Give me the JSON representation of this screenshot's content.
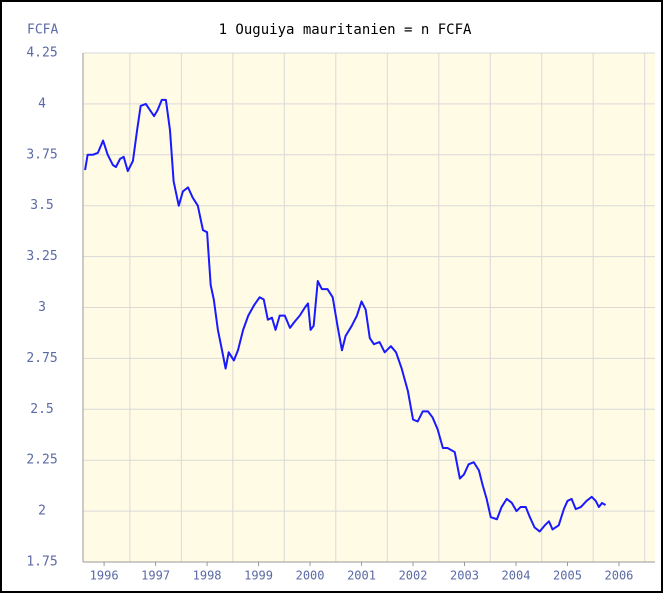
{
  "chart_data": {
    "type": "line",
    "title": "1 Ouguiya mauritanien = n FCFA",
    "y_label": "FCFA",
    "color": "#1a1aff",
    "x": [
      1996.13,
      1996.18,
      1996.28,
      1996.38,
      1996.48,
      1996.57,
      1996.67,
      1996.73,
      1996.81,
      1996.88,
      1996.96,
      1997.06,
      1997.14,
      1997.21,
      1997.31,
      1997.39,
      1997.47,
      1997.54,
      1997.62,
      1997.7,
      1997.78,
      1997.85,
      1997.95,
      1998.03,
      1998.13,
      1998.22,
      1998.32,
      1998.42,
      1998.5,
      1998.57,
      1998.63,
      1998.71,
      1998.79,
      1998.86,
      1998.92,
      1999.02,
      1999.1,
      1999.2,
      1999.3,
      1999.41,
      1999.52,
      1999.6,
      1999.68,
      1999.76,
      1999.83,
      1999.91,
      2000.01,
      2000.11,
      2000.2,
      2000.3,
      2000.4,
      2000.46,
      2000.51,
      2000.57,
      2000.65,
      2000.73,
      2000.84,
      2000.94,
      2001.04,
      2001.12,
      2001.19,
      2001.31,
      2001.41,
      2001.5,
      2001.58,
      2001.66,
      2001.74,
      2001.85,
      2001.95,
      2002.07,
      2002.17,
      2002.28,
      2002.4,
      2002.5,
      2002.59,
      2002.69,
      2002.79,
      2002.88,
      2002.98,
      2003.08,
      2003.17,
      2003.31,
      2003.41,
      2003.49,
      2003.58,
      2003.68,
      2003.78,
      2003.85,
      2003.93,
      2004.01,
      2004.13,
      2004.22,
      2004.32,
      2004.42,
      2004.51,
      2004.59,
      2004.69,
      2004.77,
      2004.86,
      2004.96,
      2005.06,
      2005.14,
      2005.21,
      2005.33,
      2005.43,
      2005.5,
      2005.58,
      2005.66,
      2005.76,
      2005.87,
      2005.97,
      2006.05,
      2006.11,
      2006.17,
      2006.24
    ],
    "values": [
      3.675,
      3.75,
      3.75,
      3.76,
      3.82,
      3.75,
      3.7,
      3.69,
      3.73,
      3.74,
      3.67,
      3.72,
      3.87,
      3.99,
      4.0,
      3.97,
      3.94,
      3.97,
      4.02,
      4.02,
      3.87,
      3.62,
      3.5,
      3.57,
      3.59,
      3.54,
      3.5,
      3.38,
      3.37,
      3.11,
      3.04,
      2.89,
      2.79,
      2.7,
      2.78,
      2.74,
      2.79,
      2.89,
      2.96,
      3.01,
      3.05,
      3.04,
      2.94,
      2.95,
      2.89,
      2.96,
      2.96,
      2.9,
      2.93,
      2.96,
      3.0,
      3.02,
      2.89,
      2.91,
      3.13,
      3.09,
      3.09,
      3.05,
      2.9,
      2.79,
      2.86,
      2.91,
      2.96,
      3.03,
      2.99,
      2.85,
      2.82,
      2.83,
      2.78,
      2.81,
      2.78,
      2.7,
      2.59,
      2.45,
      2.44,
      2.49,
      2.49,
      2.46,
      2.4,
      2.31,
      2.31,
      2.29,
      2.16,
      2.18,
      2.23,
      2.24,
      2.2,
      2.13,
      2.06,
      1.97,
      1.96,
      2.02,
      2.06,
      2.04,
      2.0,
      2.02,
      2.02,
      1.97,
      1.92,
      1.9,
      1.93,
      1.95,
      1.91,
      1.93,
      2.01,
      2.05,
      2.06,
      2.01,
      2.02,
      2.05,
      2.07,
      2.05,
      2.02,
      2.04,
      2.03
    ],
    "xlim": [
      1996.09,
      2007.2
    ],
    "ylim": [
      1.75,
      4.25
    ],
    "yticks": [
      1.75,
      2,
      2.25,
      2.5,
      2.75,
      3,
      3.25,
      3.5,
      3.75,
      4,
      4.25
    ],
    "xticks": [
      {
        "value": 1996.5,
        "label": "1996"
      },
      {
        "value": 1997.5,
        "label": "1997"
      },
      {
        "value": 1998.5,
        "label": "1998"
      },
      {
        "value": 1999.5,
        "label": "1999"
      },
      {
        "value": 2000.5,
        "label": "2000"
      },
      {
        "value": 2001.5,
        "label": "2001"
      },
      {
        "value": 2002.5,
        "label": "2002"
      },
      {
        "value": 2003.5,
        "label": "2003"
      },
      {
        "value": 2004.5,
        "label": "2004"
      },
      {
        "value": 2005.5,
        "label": "2005"
      },
      {
        "value": 2006.5,
        "label": "2006"
      }
    ],
    "xgrid": [
      1997,
      1998,
      1999,
      2000,
      2001,
      2002,
      2003,
      2004,
      2005,
      2006,
      2007
    ],
    "grid": true,
    "plot_background": "#fffbe5"
  }
}
